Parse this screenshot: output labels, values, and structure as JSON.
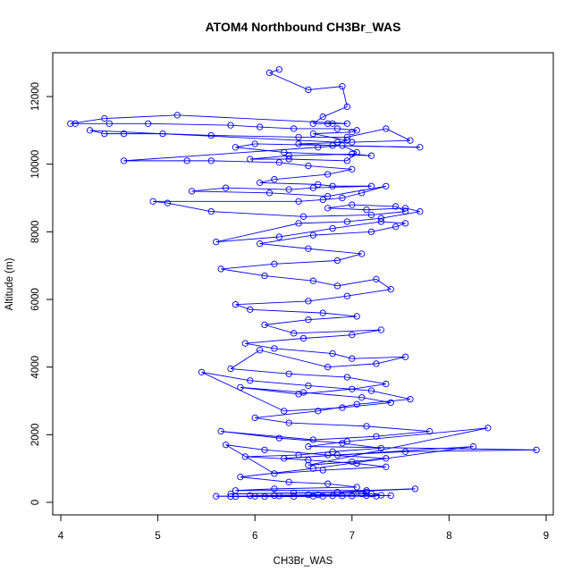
{
  "chart_data": {
    "type": "scatter",
    "title": "ATOM4 Northbound CH3Br_WAS",
    "xlabel": "CH3Br_WAS",
    "ylabel": "Altitude (m)",
    "xlim": [
      4,
      9
    ],
    "ylim": [
      0,
      12000
    ],
    "xticks": [
      "4",
      "5",
      "6",
      "7",
      "8",
      "9"
    ],
    "yticks": [
      "0",
      "2000",
      "4000",
      "6000",
      "8000",
      "10000",
      "12000"
    ],
    "grid": false,
    "legend": "none",
    "line_color": "#0000ff",
    "marker": "open-circle",
    "series": [
      {
        "x": [
          6.25,
          6.15,
          6.55,
          6.9,
          6.95,
          6.7,
          6.6,
          6.8,
          6.75,
          6.95,
          5.2,
          4.45,
          4.1,
          4.15,
          4.5,
          4.9,
          5.75,
          6.05,
          6.4,
          6.85,
          7.05,
          7.0,
          6.6,
          6.95,
          6.85,
          4.3,
          4.45,
          4.65,
          5.05,
          5.55,
          6.45,
          6.95,
          7.35,
          7.6,
          7.0,
          6.45,
          6.8,
          7.7,
          6.0,
          5.8,
          6.3,
          7.2,
          7.0,
          6.35,
          5.95,
          6.35,
          6.95,
          7.05,
          6.9,
          6.65,
          4.65,
          5.3,
          5.55,
          6.25,
          6.55,
          7.0,
          6.75,
          6.2,
          6.05,
          6.65,
          6.8,
          7.2,
          6.6,
          6.35,
          5.7,
          5.35,
          6.15,
          6.75,
          7.35,
          7.1,
          6.9,
          6.7,
          6.45,
          4.95,
          5.1,
          5.55,
          6.5,
          7.2,
          7.55,
          7.45,
          7.0,
          6.75,
          7.15,
          7.55,
          7.7,
          7.3,
          6.95,
          6.45,
          5.6,
          6.25,
          6.8,
          7.3,
          7.55,
          7.45,
          7.2,
          6.6,
          6.05,
          6.55,
          7.1,
          6.85,
          6.2,
          5.65,
          6.1,
          6.6,
          6.85,
          7.25,
          7.4,
          6.95,
          6.55,
          5.8,
          5.95,
          6.7,
          7.05,
          6.55,
          6.1,
          6.4,
          7.3,
          7.0,
          6.5,
          5.9,
          6.2,
          6.8,
          7.0,
          7.55,
          7.25,
          6.75,
          6.05,
          5.75,
          6.35,
          6.95,
          7.35,
          7.0,
          6.45,
          5.85,
          6.5,
          7.1,
          7.4,
          6.9,
          6.3,
          5.45,
          5.95,
          6.55,
          7.2,
          7.6,
          7.05,
          6.65,
          6.0,
          6.35,
          7.15,
          7.8,
          7.25,
          6.6,
          5.65,
          6.25,
          6.9,
          7.3,
          6.8,
          6.45,
          5.9,
          6.55,
          7.05,
          7.35,
          6.7,
          6.2,
          5.7,
          6.1,
          6.75,
          7.35,
          7.0,
          6.55,
          8.4,
          6.95,
          6.55,
          8.9,
          7.55,
          6.85,
          6.3,
          8.25,
          6.6,
          5.85,
          6.35,
          6.75,
          7.05,
          6.2,
          5.8,
          7.15,
          7.65,
          6.85,
          6.4,
          5.75,
          7.15,
          7.1,
          6.65,
          5.95,
          6.25,
          7.15,
          6.0,
          5.6,
          6.8,
          7.4,
          6.6,
          6.1,
          5.75,
          6.9,
          7.3,
          7.2,
          6.55,
          6.2,
          7.0,
          7.25,
          6.7,
          6.4,
          5.8
        ],
        "y": [
          12800,
          12700,
          12200,
          12300,
          11700,
          11400,
          11200,
          11200,
          11200,
          11200,
          11450,
          11350,
          11200,
          11200,
          11200,
          11200,
          11150,
          11100,
          11050,
          11050,
          11000,
          10950,
          10900,
          10700,
          10650,
          11000,
          10900,
          10900,
          10900,
          10850,
          10800,
          10800,
          11050,
          10700,
          10650,
          10600,
          10550,
          10500,
          10600,
          10500,
          10350,
          10250,
          10300,
          10250,
          10150,
          10150,
          10100,
          10350,
          10550,
          10500,
          10100,
          10100,
          10100,
          10050,
          9950,
          9850,
          9700,
          9550,
          9450,
          9400,
          9350,
          9350,
          9300,
          9250,
          9300,
          9200,
          9150,
          9050,
          9350,
          9150,
          9000,
          8950,
          8900,
          8900,
          8850,
          8600,
          8450,
          8500,
          8600,
          8750,
          8800,
          8700,
          8650,
          8700,
          8600,
          8400,
          8300,
          8250,
          7700,
          7850,
          8100,
          8300,
          8250,
          8150,
          8000,
          7900,
          7650,
          7500,
          7350,
          7150,
          7050,
          6900,
          6700,
          6550,
          6400,
          6600,
          6300,
          6100,
          5950,
          5850,
          5700,
          5600,
          5500,
          5400,
          5250,
          5000,
          5100,
          4950,
          4850,
          4700,
          4550,
          4400,
          4250,
          4300,
          4100,
          4000,
          4500,
          3950,
          3800,
          3700,
          3500,
          3350,
          3200,
          3400,
          3250,
          3100,
          2950,
          2800,
          2700,
          3850,
          3600,
          3450,
          3300,
          3050,
          2900,
          2700,
          2500,
          2350,
          2250,
          2100,
          1950,
          1850,
          2100,
          1900,
          1750,
          1600,
          1500,
          1400,
          1350,
          1250,
          1150,
          1050,
          950,
          850,
          1700,
          1550,
          1400,
          1300,
          1200,
          1100,
          2200,
          1800,
          1650,
          1550,
          1500,
          1400,
          1300,
          1650,
          1000,
          750,
          600,
          550,
          450,
          400,
          350,
          350,
          400,
          300,
          280,
          250,
          300,
          250,
          220,
          200,
          190,
          200,
          180,
          180,
          190,
          200,
          180,
          170,
          170,
          190,
          210,
          250,
          220,
          200,
          190,
          180,
          180,
          170,
          170
        ]
      }
    ]
  }
}
